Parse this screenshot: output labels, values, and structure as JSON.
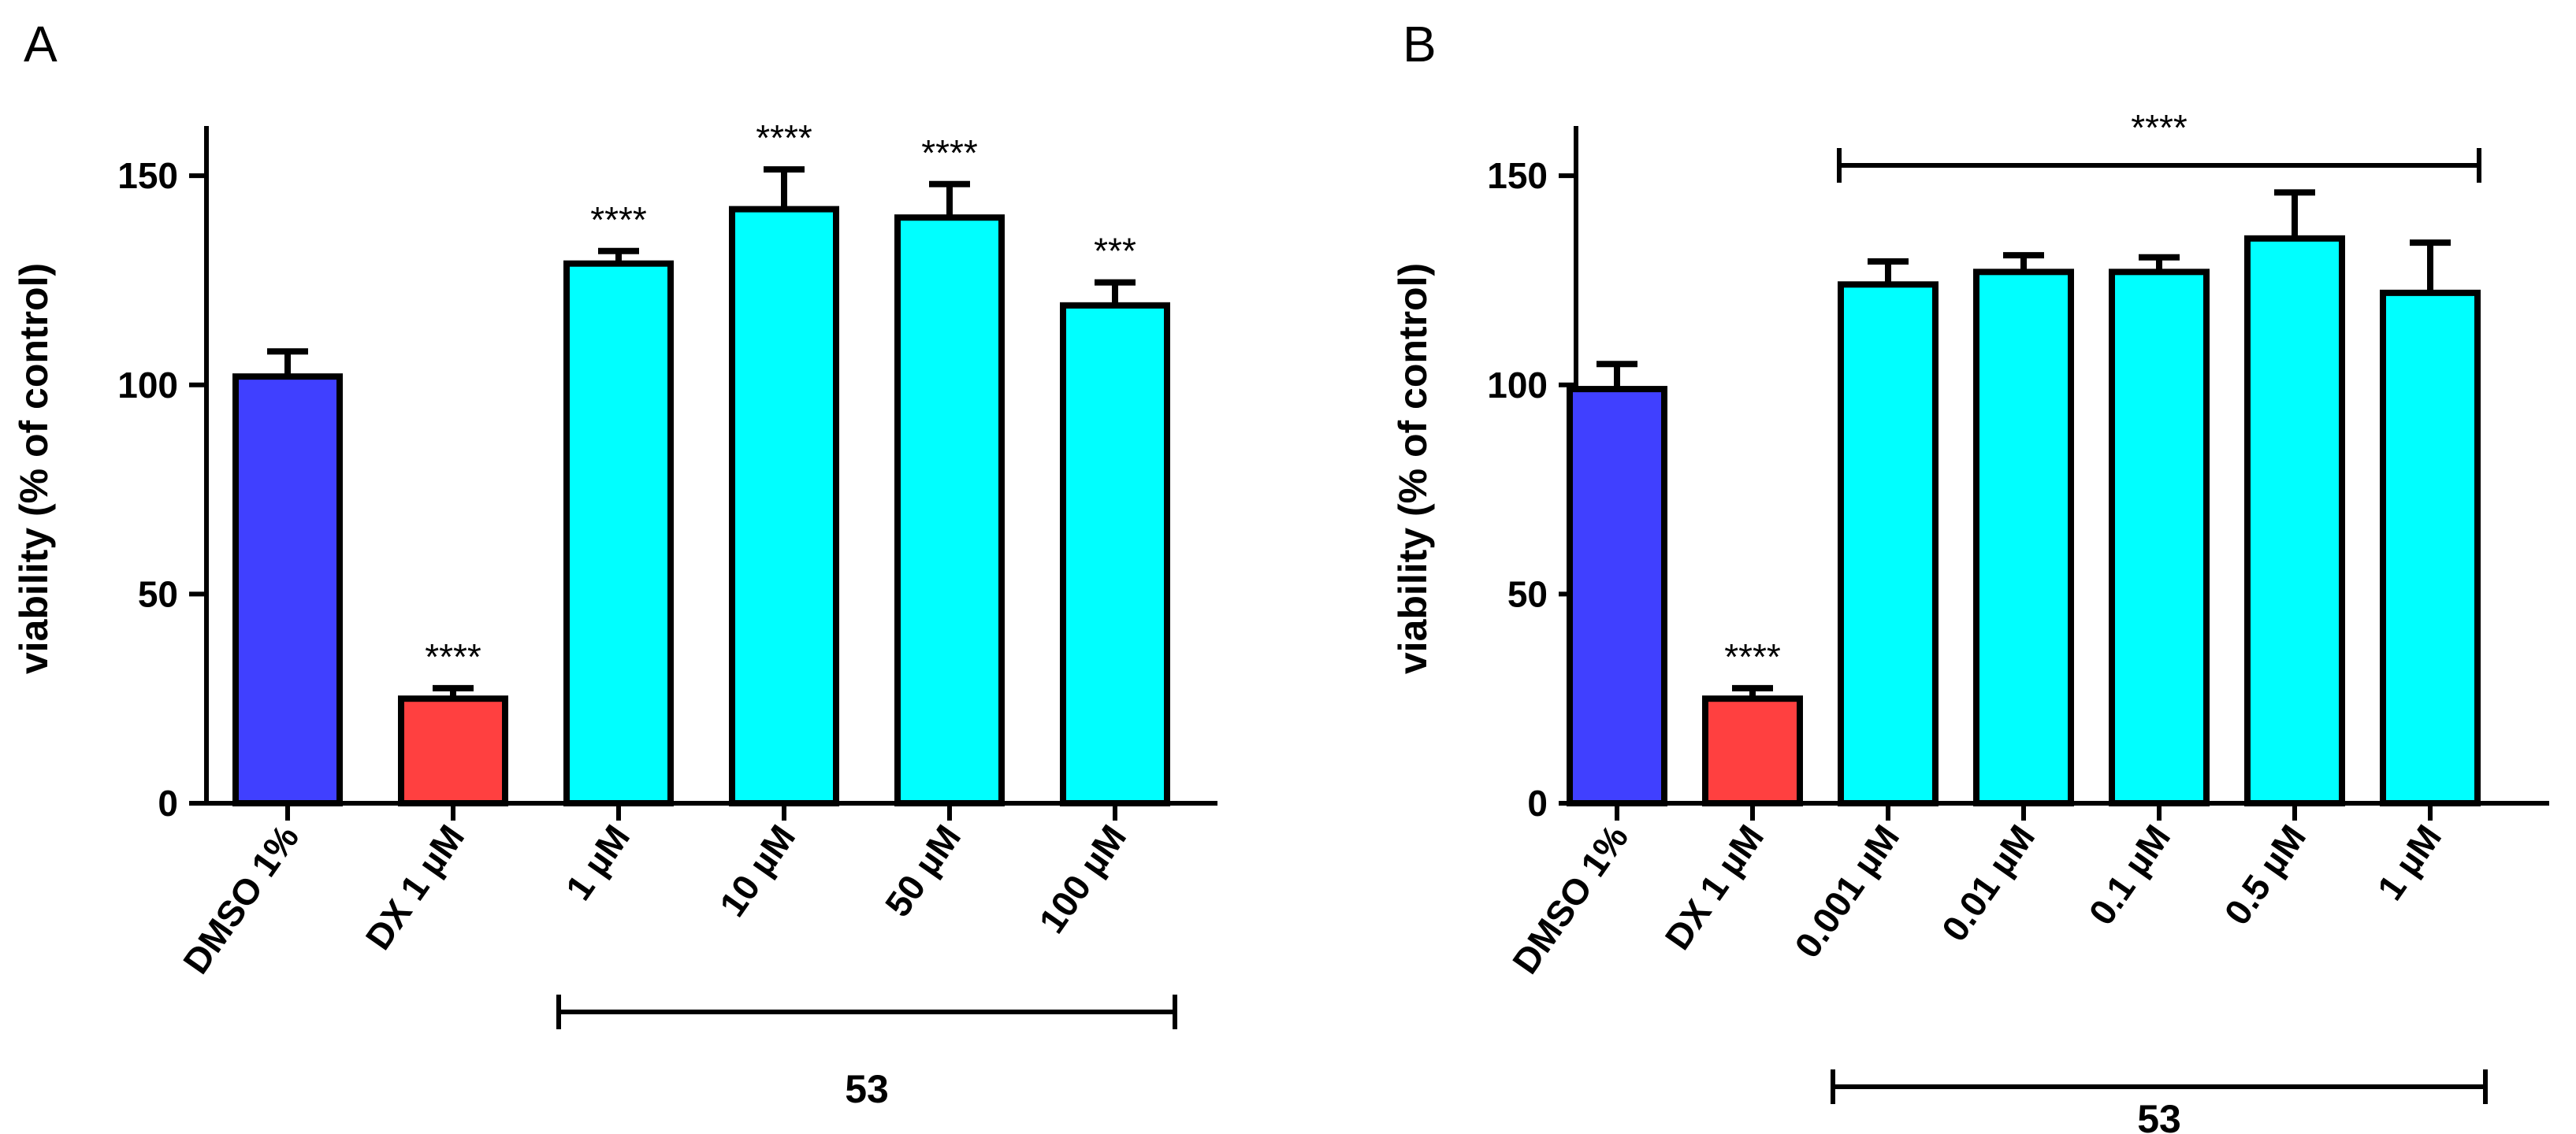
{
  "colors": {
    "control": "#4040ff",
    "reference": "#ff4040",
    "compound": "#00ffff",
    "outline": "#000000"
  },
  "chart_data": [
    {
      "panel": "A",
      "type": "bar",
      "ylabel": "viability (% of control)",
      "ylim": [
        0,
        160
      ],
      "yticks": [
        0,
        50,
        100,
        150
      ],
      "categories": [
        "DMSO 1%",
        "DX 1 µM",
        "1 µM",
        "10 µM",
        "50 µM",
        "100 µM"
      ],
      "values": [
        102,
        25,
        129,
        142,
        140,
        119
      ],
      "errors": [
        6,
        2.5,
        3,
        9.5,
        8,
        5.5
      ],
      "color_keys": [
        "control",
        "reference",
        "compound",
        "compound",
        "compound",
        "compound"
      ],
      "significance": [
        "",
        "****",
        "****",
        "****",
        "****",
        "***"
      ],
      "group": {
        "label": "53",
        "from": 2,
        "to": 5
      }
    },
    {
      "panel": "B",
      "type": "bar",
      "ylabel": "viability (% of control)",
      "ylim": [
        0,
        160
      ],
      "yticks": [
        0,
        50,
        100,
        150
      ],
      "categories": [
        "DMSO 1%",
        "DX 1 µM",
        "0.001 µM",
        "0.01 µM",
        "0.1 µM",
        "0.5 µM",
        "1 µM"
      ],
      "values": [
        99,
        25,
        124,
        127,
        127,
        135,
        122
      ],
      "errors": [
        6,
        2.5,
        5.5,
        4,
        3.5,
        11,
        12
      ],
      "color_keys": [
        "control",
        "reference",
        "compound",
        "compound",
        "compound",
        "compound",
        "compound"
      ],
      "significance": [
        "",
        "****",
        "",
        "",
        "",
        "",
        ""
      ],
      "bracket": {
        "label": "****",
        "from": 2,
        "to": 6
      },
      "group": {
        "label": "53",
        "from": 2,
        "to": 6
      }
    }
  ]
}
